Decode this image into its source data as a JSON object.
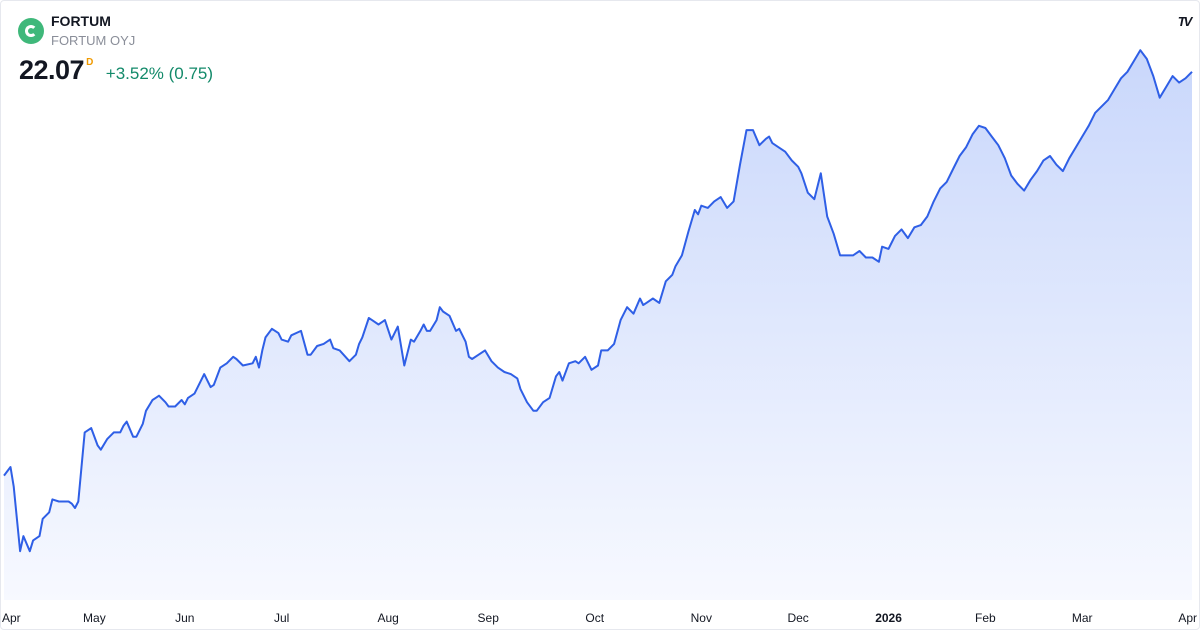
{
  "header": {
    "symbol": "FORTUM",
    "company": "FORTUM OYJ",
    "price": "22.07",
    "flag": "D",
    "change": "+3.52% (0.75)",
    "logo_icon": "fortum-logo-icon",
    "brand_icon": "tradingview-icon"
  },
  "colors": {
    "line": "#2f5fe6",
    "fill_top": "#c9d7fb",
    "fill_bottom": "#f7f9ff",
    "change_positive": "#138a6a",
    "flag": "#f09a00"
  },
  "chart_data": {
    "type": "area",
    "title": "",
    "xlabel": "",
    "ylabel": "",
    "grid": false,
    "ylim": [
      10.0,
      23.5
    ],
    "xlim": [
      0,
      368
    ],
    "x_ticks": [
      {
        "label": "Apr",
        "x": 0,
        "year": false
      },
      {
        "label": "May",
        "x": 28,
        "year": false
      },
      {
        "label": "Jun",
        "x": 56,
        "year": false
      },
      {
        "label": "Jul",
        "x": 86,
        "year": false
      },
      {
        "label": "Aug",
        "x": 119,
        "year": false
      },
      {
        "label": "Sep",
        "x": 150,
        "year": false
      },
      {
        "label": "Oct",
        "x": 183,
        "year": false
      },
      {
        "label": "Nov",
        "x": 216,
        "year": false
      },
      {
        "label": "Dec",
        "x": 246,
        "year": false
      },
      {
        "label": "2026",
        "x": 274,
        "year": true
      },
      {
        "label": "Feb",
        "x": 304,
        "year": false
      },
      {
        "label": "Mar",
        "x": 334,
        "year": false
      },
      {
        "label": "Apr",
        "x": 364,
        "year": false
      }
    ],
    "series": [
      {
        "points": [
          [
            0,
            12.95
          ],
          [
            2,
            13.15
          ],
          [
            3,
            12.7
          ],
          [
            5,
            11.2
          ],
          [
            6,
            11.55
          ],
          [
            8,
            11.2
          ],
          [
            9,
            11.45
          ],
          [
            11,
            11.55
          ],
          [
            12,
            11.95
          ],
          [
            14,
            12.1
          ],
          [
            15,
            12.4
          ],
          [
            17,
            12.35
          ],
          [
            20,
            12.35
          ],
          [
            21,
            12.3
          ],
          [
            22,
            12.2
          ],
          [
            23,
            12.35
          ],
          [
            25,
            13.95
          ],
          [
            27,
            14.05
          ],
          [
            29,
            13.65
          ],
          [
            30,
            13.55
          ],
          [
            32,
            13.8
          ],
          [
            34,
            13.95
          ],
          [
            36,
            13.95
          ],
          [
            37,
            14.1
          ],
          [
            38,
            14.2
          ],
          [
            40,
            13.85
          ],
          [
            41,
            13.85
          ],
          [
            43,
            14.15
          ],
          [
            44,
            14.45
          ],
          [
            46,
            14.7
          ],
          [
            47,
            14.75
          ],
          [
            48,
            14.8
          ],
          [
            50,
            14.65
          ],
          [
            51,
            14.55
          ],
          [
            53,
            14.55
          ],
          [
            55,
            14.7
          ],
          [
            56,
            14.6
          ],
          [
            57,
            14.75
          ],
          [
            59,
            14.85
          ],
          [
            62,
            15.3
          ],
          [
            64,
            15.0
          ],
          [
            65,
            15.05
          ],
          [
            67,
            15.45
          ],
          [
            69,
            15.55
          ],
          [
            71,
            15.7
          ],
          [
            72,
            15.65
          ],
          [
            74,
            15.5
          ],
          [
            77,
            15.55
          ],
          [
            78,
            15.7
          ],
          [
            79,
            15.45
          ],
          [
            80,
            15.85
          ],
          [
            81,
            16.15
          ],
          [
            83,
            16.35
          ],
          [
            85,
            16.25
          ],
          [
            86,
            16.1
          ],
          [
            88,
            16.05
          ],
          [
            89,
            16.2
          ],
          [
            92,
            16.3
          ],
          [
            94,
            15.75
          ],
          [
            95,
            15.75
          ],
          [
            97,
            15.95
          ],
          [
            99,
            16.0
          ],
          [
            101,
            16.1
          ],
          [
            102,
            15.9
          ],
          [
            104,
            15.85
          ],
          [
            107,
            15.6
          ],
          [
            109,
            15.75
          ],
          [
            110,
            16.0
          ],
          [
            111,
            16.15
          ],
          [
            113,
            16.6
          ],
          [
            114,
            16.55
          ],
          [
            116,
            16.45
          ],
          [
            118,
            16.55
          ],
          [
            120,
            16.1
          ],
          [
            122,
            16.4
          ],
          [
            124,
            15.5
          ],
          [
            126,
            16.1
          ],
          [
            127,
            16.05
          ],
          [
            129,
            16.3
          ],
          [
            130,
            16.45
          ],
          [
            131,
            16.3
          ],
          [
            132,
            16.3
          ],
          [
            134,
            16.55
          ],
          [
            135,
            16.85
          ],
          [
            136,
            16.75
          ],
          [
            138,
            16.65
          ],
          [
            140,
            16.3
          ],
          [
            141,
            16.35
          ],
          [
            143,
            16.05
          ],
          [
            144,
            15.7
          ],
          [
            145,
            15.65
          ],
          [
            147,
            15.75
          ],
          [
            149,
            15.85
          ],
          [
            151,
            15.6
          ],
          [
            153,
            15.45
          ],
          [
            155,
            15.35
          ],
          [
            157,
            15.3
          ],
          [
            159,
            15.2
          ],
          [
            160,
            14.95
          ],
          [
            162,
            14.65
          ],
          [
            164,
            14.45
          ],
          [
            165,
            14.45
          ],
          [
            167,
            14.65
          ],
          [
            169,
            14.75
          ],
          [
            171,
            15.25
          ],
          [
            172,
            15.35
          ],
          [
            173,
            15.15
          ],
          [
            175,
            15.55
          ],
          [
            177,
            15.6
          ],
          [
            178,
            15.55
          ],
          [
            180,
            15.7
          ],
          [
            182,
            15.4
          ],
          [
            184,
            15.5
          ],
          [
            185,
            15.85
          ],
          [
            187,
            15.85
          ],
          [
            189,
            16.0
          ],
          [
            191,
            16.55
          ],
          [
            193,
            16.85
          ],
          [
            195,
            16.7
          ],
          [
            197,
            17.05
          ],
          [
            198,
            16.9
          ],
          [
            199,
            16.95
          ],
          [
            201,
            17.05
          ],
          [
            203,
            16.95
          ],
          [
            205,
            17.45
          ],
          [
            207,
            17.6
          ],
          [
            208,
            17.8
          ],
          [
            210,
            18.05
          ],
          [
            212,
            18.6
          ],
          [
            214,
            19.1
          ],
          [
            215,
            19.0
          ],
          [
            216,
            19.2
          ],
          [
            218,
            19.15
          ],
          [
            220,
            19.3
          ],
          [
            222,
            19.4
          ],
          [
            224,
            19.15
          ],
          [
            226,
            19.3
          ],
          [
            228,
            20.15
          ],
          [
            230,
            20.95
          ],
          [
            232,
            20.95
          ],
          [
            234,
            20.6
          ],
          [
            236,
            20.75
          ],
          [
            237,
            20.8
          ],
          [
            238,
            20.65
          ],
          [
            240,
            20.55
          ],
          [
            242,
            20.45
          ],
          [
            244,
            20.25
          ],
          [
            246,
            20.1
          ],
          [
            247,
            19.95
          ],
          [
            249,
            19.5
          ],
          [
            251,
            19.35
          ],
          [
            253,
            19.95
          ],
          [
            255,
            18.95
          ],
          [
            257,
            18.55
          ],
          [
            259,
            18.05
          ],
          [
            261,
            18.05
          ],
          [
            263,
            18.05
          ],
          [
            265,
            18.15
          ],
          [
            267,
            18.0
          ],
          [
            269,
            18.0
          ],
          [
            271,
            17.9
          ],
          [
            272,
            18.25
          ],
          [
            274,
            18.2
          ],
          [
            276,
            18.5
          ],
          [
            278,
            18.65
          ],
          [
            280,
            18.45
          ],
          [
            282,
            18.7
          ],
          [
            284,
            18.75
          ],
          [
            286,
            18.95
          ],
          [
            288,
            19.3
          ],
          [
            290,
            19.6
          ],
          [
            292,
            19.75
          ],
          [
            294,
            20.05
          ],
          [
            296,
            20.35
          ],
          [
            298,
            20.55
          ],
          [
            300,
            20.85
          ],
          [
            302,
            21.05
          ],
          [
            304,
            21.0
          ],
          [
            306,
            20.8
          ],
          [
            308,
            20.6
          ],
          [
            310,
            20.3
          ],
          [
            312,
            19.9
          ],
          [
            314,
            19.7
          ],
          [
            316,
            19.55
          ],
          [
            318,
            19.8
          ],
          [
            320,
            20.0
          ],
          [
            322,
            20.25
          ],
          [
            324,
            20.35
          ],
          [
            326,
            20.15
          ],
          [
            328,
            20.0
          ],
          [
            330,
            20.3
          ],
          [
            332,
            20.55
          ],
          [
            334,
            20.8
          ],
          [
            336,
            21.05
          ],
          [
            338,
            21.35
          ],
          [
            340,
            21.5
          ],
          [
            342,
            21.65
          ],
          [
            344,
            21.9
          ],
          [
            346,
            22.15
          ],
          [
            348,
            22.3
          ],
          [
            350,
            22.55
          ],
          [
            352,
            22.8
          ],
          [
            354,
            22.6
          ],
          [
            356,
            22.2
          ],
          [
            358,
            21.7
          ],
          [
            360,
            21.95
          ],
          [
            362,
            22.2
          ],
          [
            364,
            22.05
          ],
          [
            366,
            22.15
          ],
          [
            368,
            22.3
          ]
        ]
      }
    ]
  }
}
